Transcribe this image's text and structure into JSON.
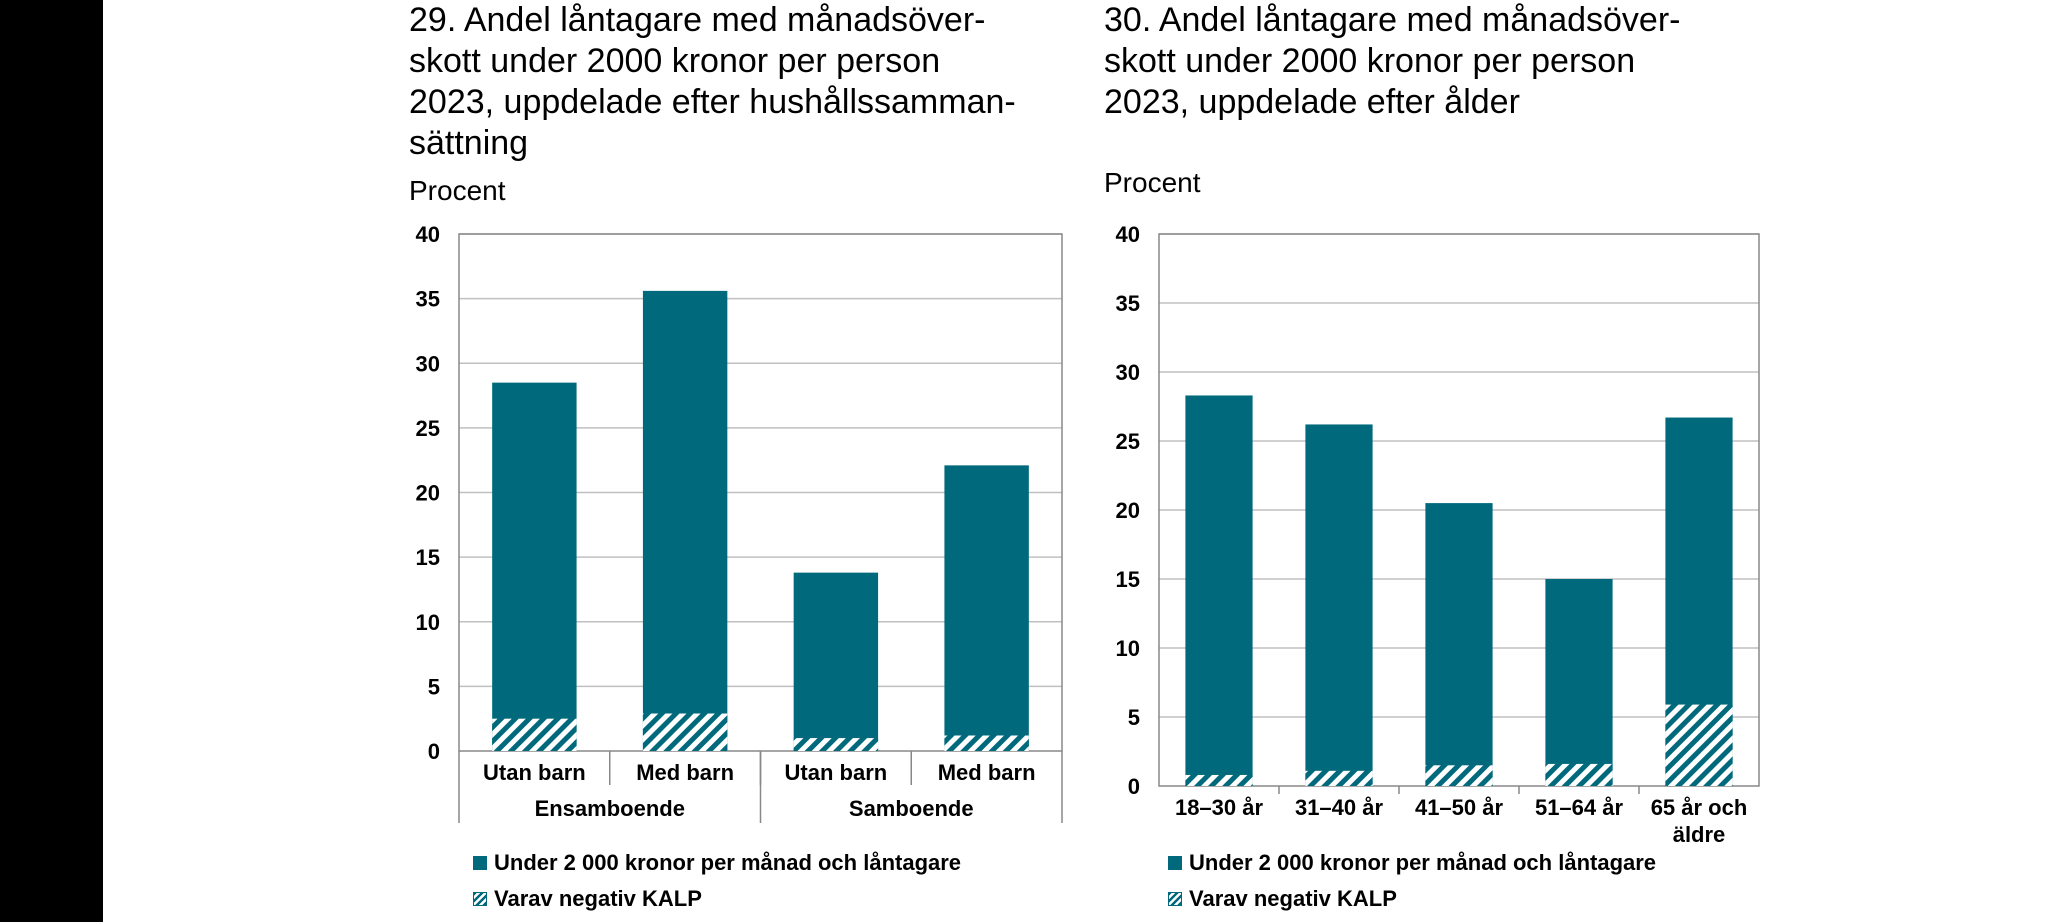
{
  "colors": {
    "bar": "#006a7c",
    "grid": "#c0c0c0",
    "axis": "#888888"
  },
  "chart_data": [
    {
      "type": "bar",
      "stacked_overlay": true,
      "title_lines": [
        "29. Andel låntagare med månadsöver-",
        "skott under 2000 kronor per person",
        "2023, uppdelade efter hushållssamman-",
        "sättning"
      ],
      "ylabel": "Procent",
      "ylim": [
        0,
        40
      ],
      "yticks": [
        0,
        5,
        10,
        15,
        20,
        25,
        30,
        35,
        40
      ],
      "categories": [
        "Utan barn",
        "Med barn",
        "Utan barn",
        "Med barn"
      ],
      "groups": [
        {
          "label": "Ensamboende",
          "categories": [
            "Utan barn",
            "Med barn"
          ]
        },
        {
          "label": "Samboende",
          "categories": [
            "Utan barn",
            "Med barn"
          ]
        }
      ],
      "series": [
        {
          "name": "Under 2 000 kronor per månad och låntagare",
          "values": [
            28.5,
            35.6,
            13.8,
            22.1
          ]
        },
        {
          "name": "Varav negativ KALP",
          "values": [
            2.5,
            2.9,
            1.0,
            1.2
          ]
        }
      ],
      "grid": true
    },
    {
      "type": "bar",
      "stacked_overlay": true,
      "title_lines": [
        "30. Andel låntagare med månadsöver-",
        "skott under 2000 kronor per person",
        "2023, uppdelade efter ålder"
      ],
      "ylabel": "Procent",
      "ylim": [
        0,
        40
      ],
      "yticks": [
        0,
        5,
        10,
        15,
        20,
        25,
        30,
        35,
        40
      ],
      "categories": [
        "18–30 år",
        "31–40 år",
        "41–50 år",
        "51–64 år",
        [
          "65 år och",
          "äldre"
        ]
      ],
      "series": [
        {
          "name": "Under 2 000 kronor per månad och låntagare",
          "values": [
            28.3,
            26.2,
            20.5,
            15.0,
            26.7
          ]
        },
        {
          "name": "Varav negativ KALP",
          "values": [
            0.8,
            1.1,
            1.5,
            1.6,
            5.9
          ]
        }
      ],
      "grid": true
    }
  ]
}
